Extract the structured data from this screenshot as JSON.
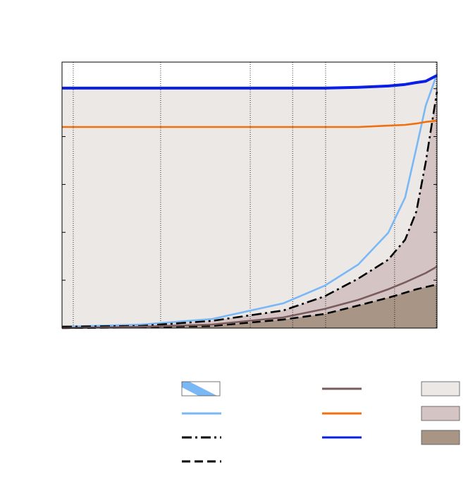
{
  "chart_data": {
    "type": "line",
    "x": [
      0,
      21,
      40,
      59,
      70,
      79,
      87,
      91.5,
      94.5,
      97,
      100
    ],
    "series": [
      {
        "color": "#7ab8f5",
        "fill": "hatch",
        "dash": "solid",
        "values": [
          0.5,
          1.3,
          3.4,
          9.3,
          15.9,
          23.9,
          35.8,
          49.1,
          67.6,
          83.6,
          95.5
        ]
      },
      {
        "color": "#000000",
        "fill": "#d5c4c4",
        "dash": "dashdot",
        "values": [
          0.5,
          0.8,
          2.7,
          6.6,
          11.9,
          18.6,
          25.7,
          33.2,
          43.8,
          62.3,
          88.9
        ]
      },
      {
        "color": "#000000",
        "fill": "#a89585",
        "dash": "dashed",
        "values": [
          0,
          0.3,
          0.8,
          3.2,
          5.3,
          8.5,
          11.4,
          13.3,
          14.6,
          15.4,
          16.4
        ]
      },
      {
        "color": "#7a5c5c",
        "dash": "solid",
        "values": [
          0,
          0.5,
          1.3,
          4.0,
          7.2,
          10.6,
          14.6,
          17.2,
          19.1,
          20.7,
          23.1
        ]
      },
      {
        "color": "#f07010",
        "dash": "solid",
        "values": [
          75.6,
          75.6,
          75.6,
          75.6,
          75.6,
          75.6,
          76.1,
          76.4,
          76.9,
          77.5,
          78.0
        ]
      },
      {
        "color": "#0a1fe6",
        "fill": "#ece8e6",
        "dash": "solid",
        "values": [
          90.2,
          90.2,
          90.2,
          90.2,
          90.2,
          90.5,
          91.0,
          91.6,
          92.3,
          92.8,
          95.0
        ]
      }
    ],
    "xlim": [
      0,
      100
    ],
    "ylim": [
      0,
      100
    ],
    "xticks": [
      3,
      26.3,
      50.2,
      61.5,
      70.3,
      88.7,
      99.8
    ],
    "yticks": [
      0,
      18,
      36,
      54,
      72,
      90
    ],
    "grid": true
  }
}
